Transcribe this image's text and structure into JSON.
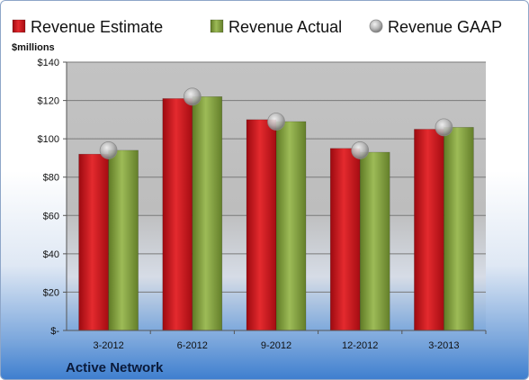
{
  "chart_data": {
    "type": "bar",
    "title": "",
    "unit_label": "$millions",
    "footer_label": "Active Network",
    "categories": [
      "3-2012",
      "6-2012",
      "9-2012",
      "12-2012",
      "3-2013"
    ],
    "series": [
      {
        "name": "Revenue Estimate",
        "type": "bar",
        "values": [
          92,
          121,
          110,
          95,
          105
        ],
        "color": "#d0141c"
      },
      {
        "name": "Revenue Actual",
        "type": "bar",
        "values": [
          94,
          122,
          109,
          93,
          106
        ],
        "color": "#7f9c3c"
      },
      {
        "name": "Revenue GAAP",
        "type": "marker",
        "values": [
          94,
          122,
          109,
          94,
          106
        ],
        "color": "#b8b8b8"
      }
    ],
    "ylim": [
      0,
      140
    ],
    "yticks": [
      0,
      20,
      40,
      60,
      80,
      100,
      120,
      140
    ],
    "ytick_labels": [
      "$-",
      "$20",
      "$40",
      "$60",
      "$80",
      "$100",
      "$120",
      "$140"
    ],
    "grid": true,
    "legend_position": "top"
  }
}
